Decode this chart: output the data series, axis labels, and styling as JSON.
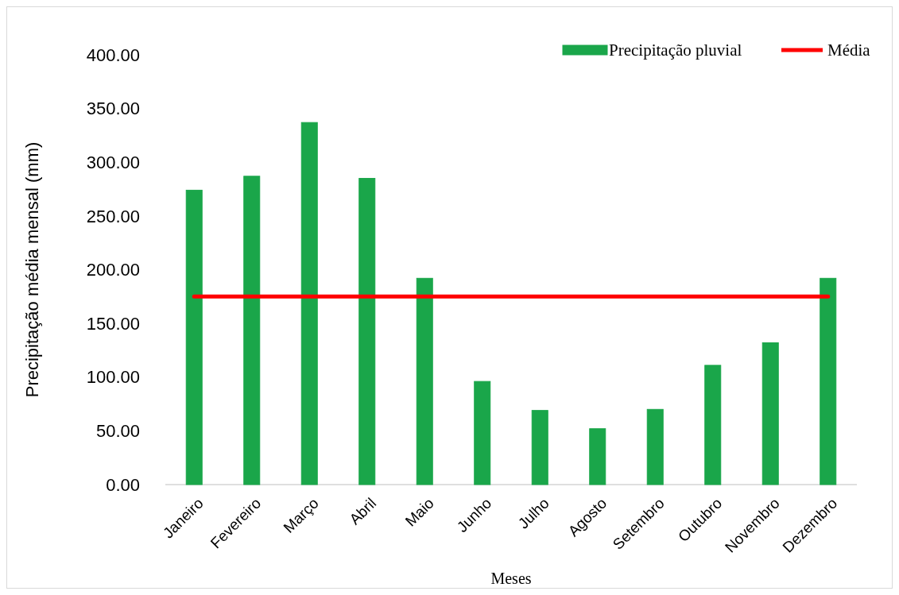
{
  "chart_data": {
    "type": "bar",
    "xlabel": "Meses",
    "ylabel": "Precipitação média mensal (mm)",
    "categories": [
      "Janeiro",
      "Fevereiro",
      "Março",
      "Abril",
      "Maio",
      "Junho",
      "Julho",
      "Agosto",
      "Setembro",
      "Outubro",
      "Novembro",
      "Dezembro"
    ],
    "series": [
      {
        "name": "Precipitação pluvial",
        "color": "#1aa64a",
        "values": [
          274,
          287,
          337,
          285,
          192,
          96,
          69,
          52,
          70,
          111,
          132,
          192
        ]
      },
      {
        "name": "Média",
        "type": "line",
        "color": "#ff0000",
        "values": [
          175,
          175,
          175,
          175,
          175,
          175,
          175,
          175,
          175,
          175,
          175,
          175
        ]
      }
    ],
    "ylim": [
      0,
      400
    ],
    "yticks": [
      {
        "value": 0,
        "label": "0.00"
      },
      {
        "value": 50,
        "label": "50.00"
      },
      {
        "value": 100,
        "label": "100.00"
      },
      {
        "value": 150,
        "label": "150.00"
      },
      {
        "value": 200,
        "label": "200.00"
      },
      {
        "value": 250,
        "label": "250.00"
      },
      {
        "value": 300,
        "label": "300.00"
      },
      {
        "value": 350,
        "label": "350.00"
      },
      {
        "value": 400,
        "label": "400.00"
      }
    ],
    "legend": "top right"
  }
}
